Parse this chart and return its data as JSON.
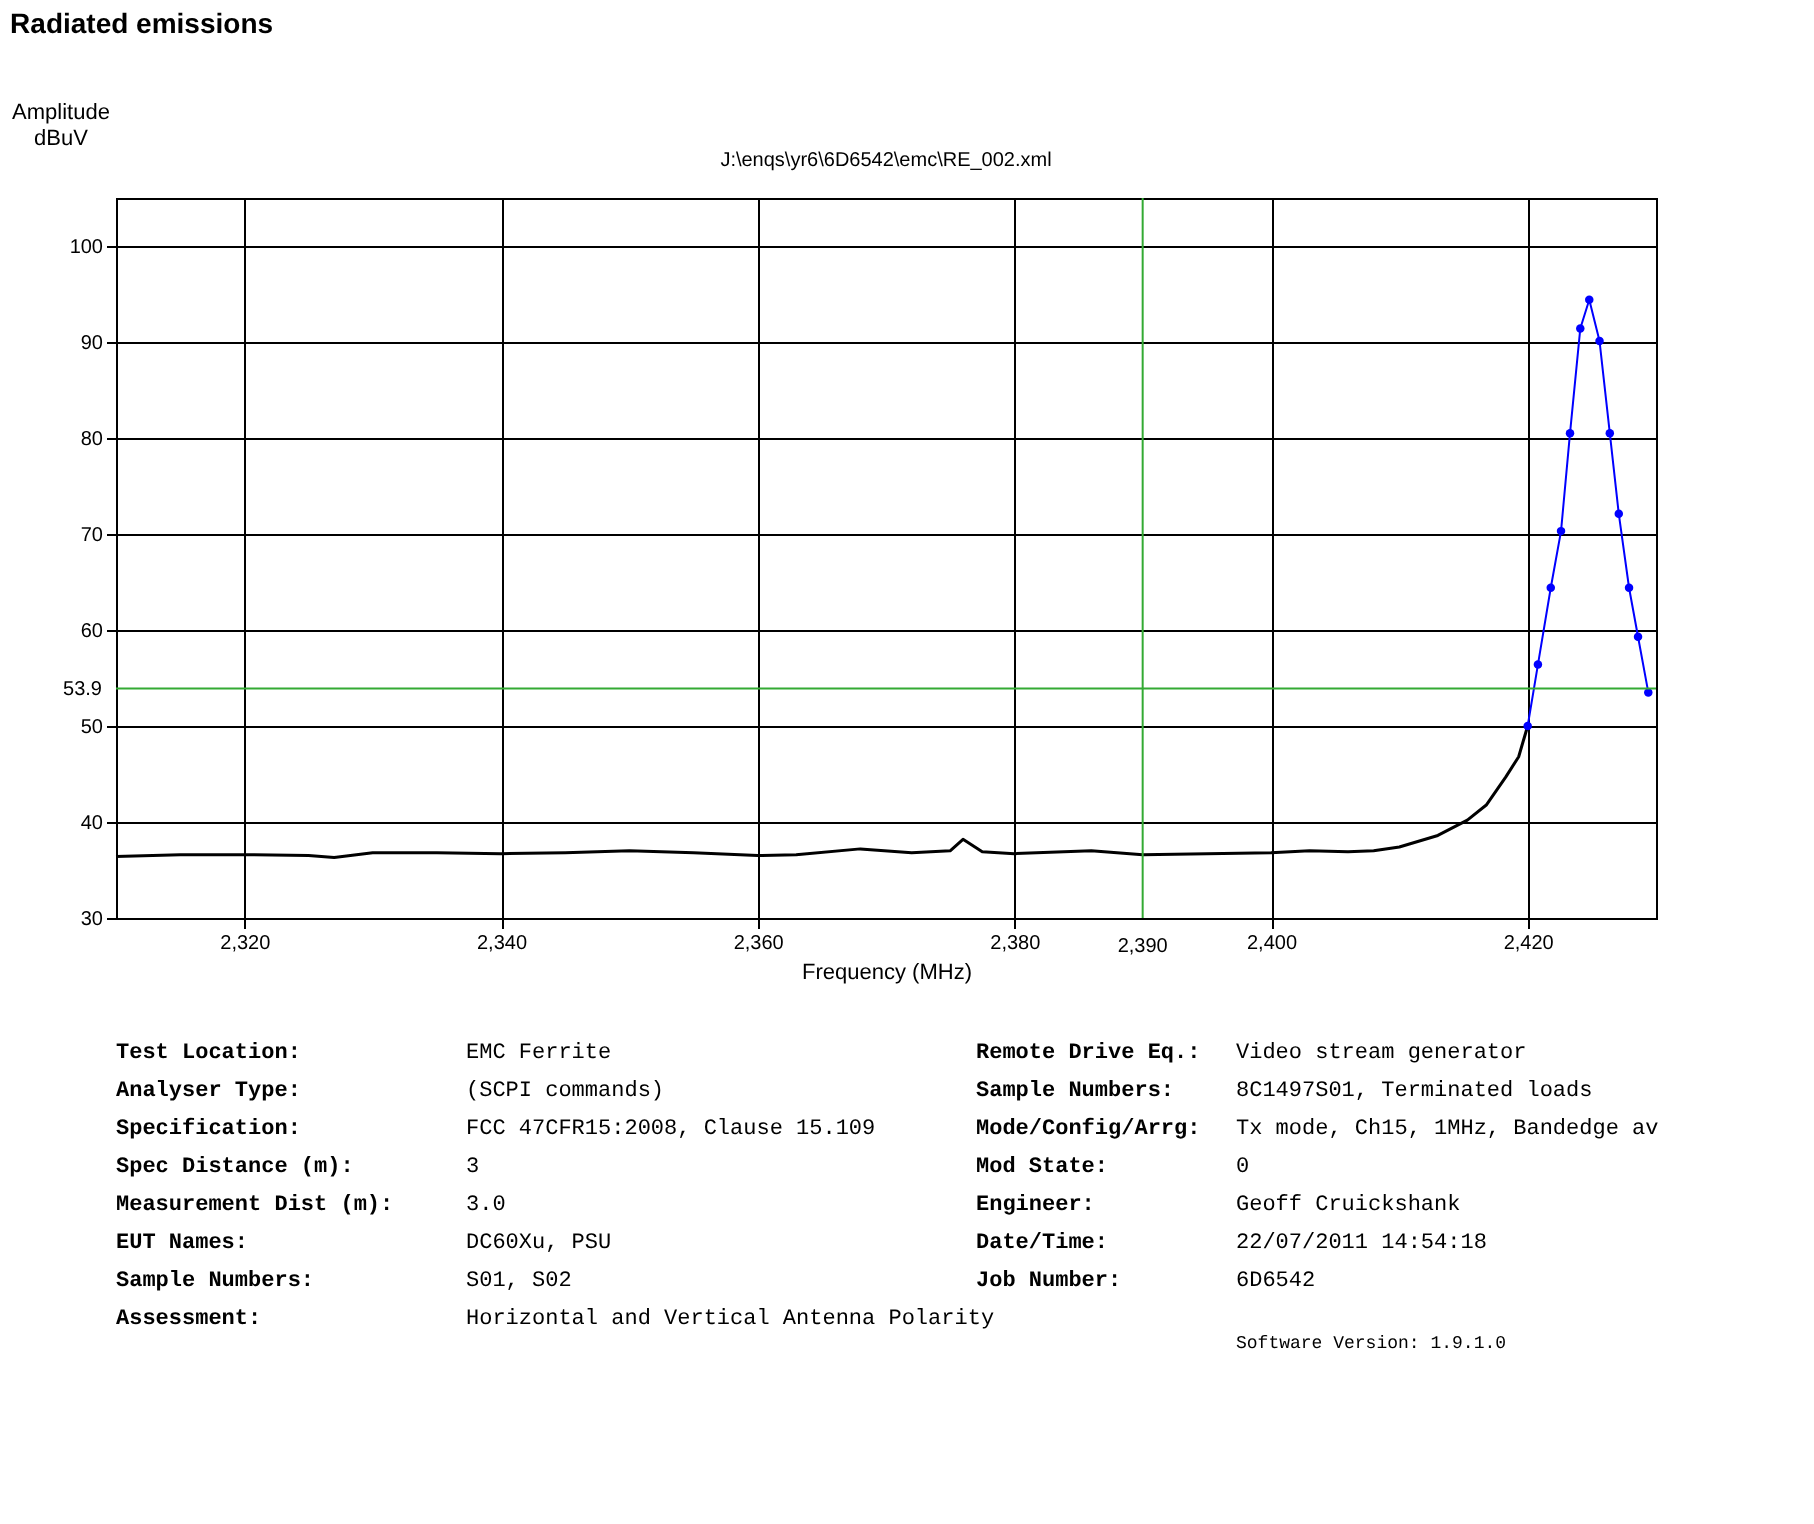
{
  "chart_data": {
    "type": "line",
    "title": "Radiated emissions",
    "subtitle": "J:\\enqs\\yr6\\6D6542\\emc\\RE_002.xml",
    "xlabel": "Frequency (MHz)",
    "ylabel": "Amplitude dBuV",
    "xlim": [
      2310,
      2430
    ],
    "ylim": [
      30,
      105
    ],
    "xticks": [
      {
        "value": 2320,
        "label": "2,320"
      },
      {
        "value": 2340,
        "label": "2,340"
      },
      {
        "value": 2360,
        "label": "2,360"
      },
      {
        "value": 2380,
        "label": "2,380"
      },
      {
        "value": 2400,
        "label": "2,400"
      },
      {
        "value": 2420,
        "label": "2,420"
      }
    ],
    "yticks": [
      30,
      40,
      50,
      60,
      70,
      80,
      90,
      100
    ],
    "grid": true,
    "line_style": "solid",
    "series": [
      {
        "color": "#000000",
        "marker": "none",
        "x": [
          2310,
          2315,
          2320,
          2325,
          2327,
          2330,
          2335,
          2340,
          2345,
          2350,
          2355,
          2360,
          2363,
          2368,
          2372,
          2375,
          2376,
          2377.5,
          2380,
          2386,
          2390,
          2395,
          2400,
          2403,
          2406,
          2408,
          2410,
          2413,
          2415.3,
          2416.8,
          2418.3,
          2419.3,
          2420
        ],
        "values": [
          36.4,
          36.6,
          36.6,
          36.5,
          36.3,
          36.8,
          36.8,
          36.7,
          36.8,
          37.0,
          36.8,
          36.5,
          36.6,
          37.2,
          36.8,
          37.0,
          38.2,
          36.9,
          36.7,
          37.0,
          36.6,
          36.7,
          36.8,
          37.0,
          36.9,
          37.0,
          37.4,
          38.6,
          40.2,
          41.8,
          44.7,
          46.8,
          50
        ]
      },
      {
        "color": "#0000ff",
        "marker": "circle",
        "x": [
          2420,
          2420.8,
          2421.8,
          2422.6,
          2423.3,
          2424.1,
          2424.8,
          2425.6,
          2426.4,
          2427.1,
          2427.9,
          2428.6,
          2429.4
        ],
        "values": [
          50,
          56.4,
          64.4,
          70.3,
          80.5,
          91.4,
          94.4,
          90.1,
          80.5,
          72.1,
          64.4,
          59.3,
          53.5
        ]
      }
    ],
    "ref_lines": [
      {
        "axis": "y",
        "value": 53.9,
        "label": "53.9",
        "color": "#33aa33"
      },
      {
        "axis": "x",
        "value": 2390,
        "label": "2,390",
        "color": "#33aa33"
      }
    ],
    "annotations": [
      "Test Location:",
      "EMC Ferrite",
      "Analyser Type:",
      "(SCPI commands)",
      "Specification:",
      "FCC 47CFR15:2008, Clause 15.109",
      "Spec Distance (m):",
      "3",
      "Measurement Dist (m):",
      "3.0",
      "EUT Names:",
      "DC60Xu, PSU",
      "Sample Numbers:",
      "S01, S02",
      "Assessment:",
      "Horizontal and Vertical Antenna Polarity",
      "Remote Drive Eq.:",
      "Video stream generator",
      "Sample Numbers:",
      "8C1497S01, Terminated loads",
      "Mode/Config/Arrg:",
      "Tx mode, Ch15, 1MHz, Bandedge av",
      "Mod State:",
      "0",
      "Engineer:",
      "Geoff Cruickshank",
      "Date/Time:",
      "22/07/2011 14:54:18",
      "Job Number:",
      "6D6542",
      "Software Version: 1.9.1.0"
    ]
  }
}
